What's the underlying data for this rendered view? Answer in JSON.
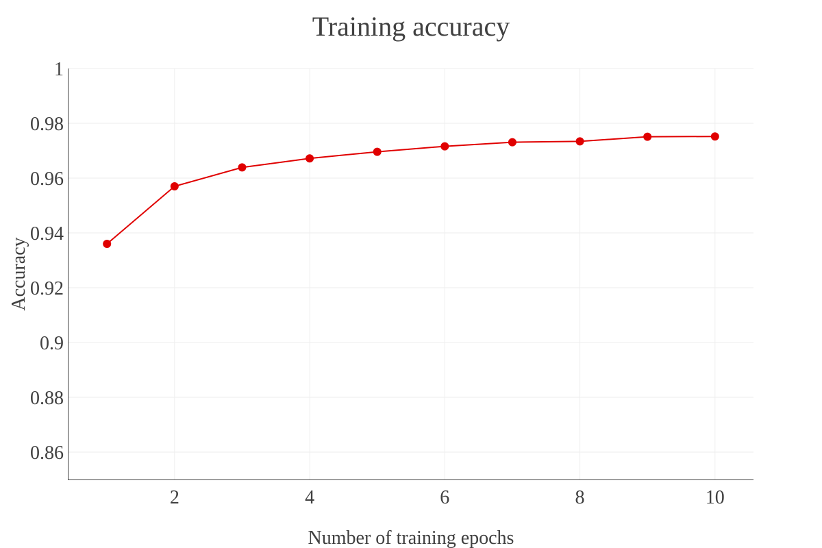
{
  "chart_data": {
    "type": "line",
    "title": "Training accuracy",
    "xlabel": "Number of training epochs",
    "ylabel": "Accuracy",
    "xlim": [
      0.43,
      10.57
    ],
    "ylim": [
      0.85,
      1.0
    ],
    "x_ticks": [
      2,
      4,
      6,
      8,
      10
    ],
    "y_ticks": [
      0.86,
      0.88,
      0.9,
      0.92,
      0.94,
      0.96,
      0.98,
      1
    ],
    "x_tick_labels": [
      "2",
      "4",
      "6",
      "8",
      "10"
    ],
    "y_tick_labels": [
      "0.86",
      "0.88",
      "0.9",
      "0.92",
      "0.94",
      "0.96",
      "0.98",
      "1"
    ],
    "grid": true,
    "series": [
      {
        "color": "#e00000",
        "x": [
          1,
          2,
          3,
          4,
          5,
          6,
          7,
          8,
          9,
          10
        ],
        "y": [
          0.936,
          0.957,
          0.9639,
          0.9672,
          0.9696,
          0.9716,
          0.9731,
          0.9734,
          0.9751,
          0.9752
        ]
      }
    ]
  }
}
